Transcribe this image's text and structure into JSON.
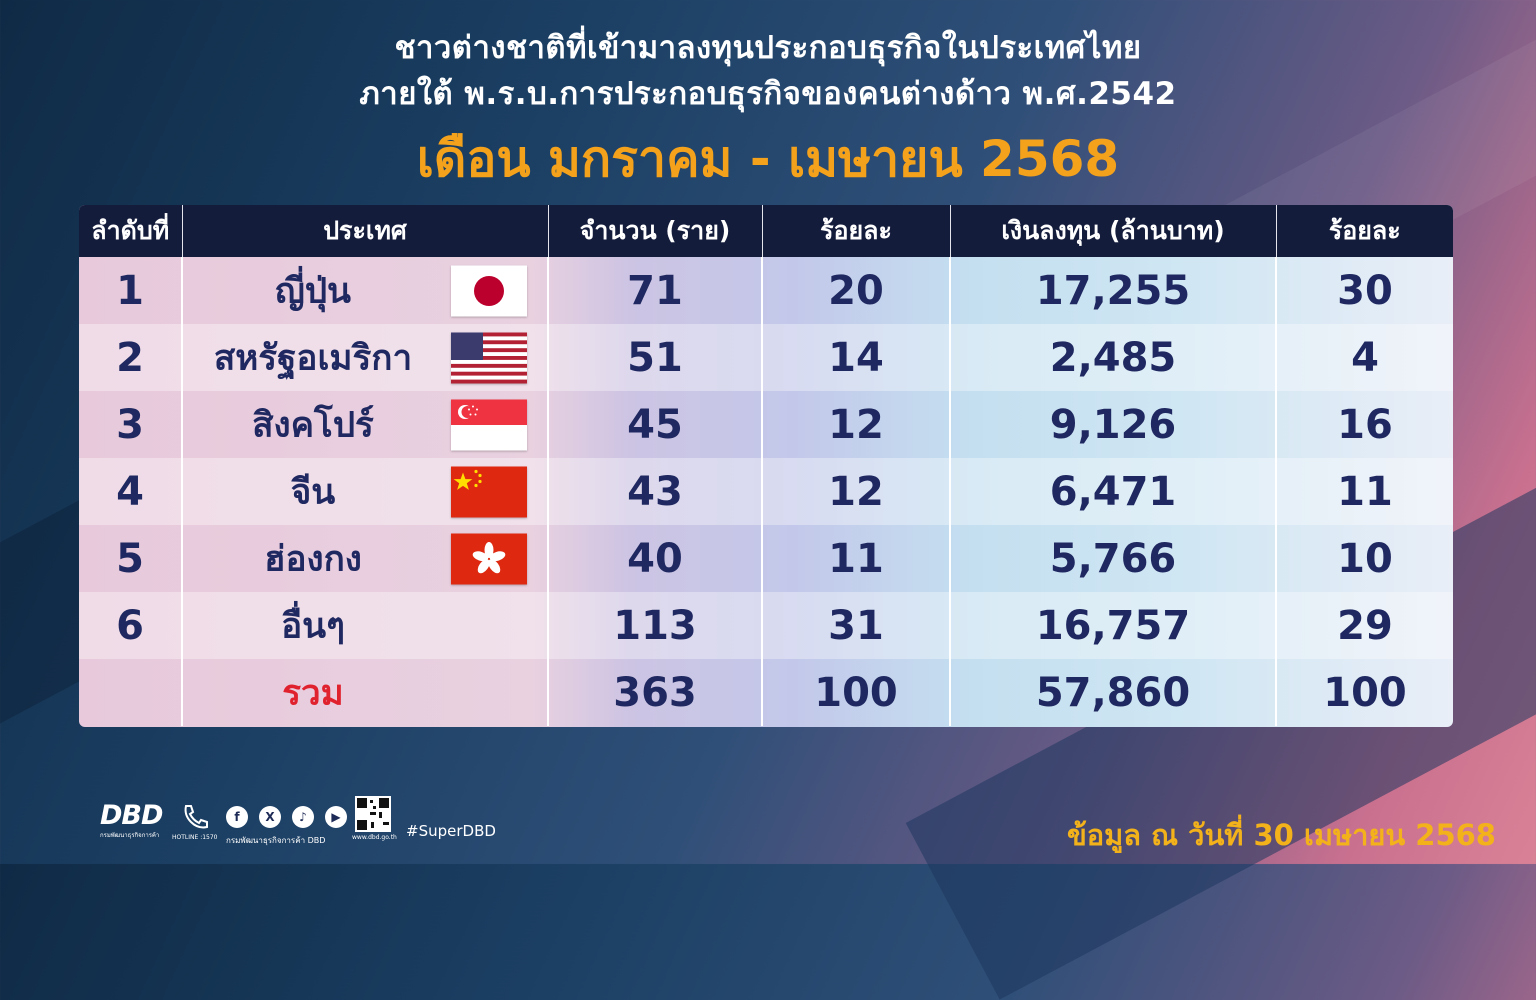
{
  "header": {
    "title_line1": "ชาวต่างชาติที่เข้ามาลงทุนประกอบธุรกิจในประเทศไทย",
    "title_line2": "ภายใต้ พ.ร.บ.การประกอบธุรกิจของคนต่างด้าว พ.ศ.2542",
    "period": "เดือน มกราคม - เมษายน 2568"
  },
  "table": {
    "columns": [
      "ลำดับที่",
      "ประเทศ",
      "จำนวน (ราย)",
      "ร้อยละ",
      "เงินลงทุน (ล้านบาท)",
      "ร้อยละ"
    ],
    "rows": [
      {
        "rank": "1",
        "country": "ญี่ปุ่น",
        "flag": "japan-flag",
        "count": "71",
        "count_pct": "20",
        "investment": "17,255",
        "investment_pct": "30"
      },
      {
        "rank": "2",
        "country": "สหรัฐอเมริกา",
        "flag": "usa-flag",
        "count": "51",
        "count_pct": "14",
        "investment": "2,485",
        "investment_pct": "4"
      },
      {
        "rank": "3",
        "country": "สิงคโปร์",
        "flag": "singapore-flag",
        "count": "45",
        "count_pct": "12",
        "investment": "9,126",
        "investment_pct": "16"
      },
      {
        "rank": "4",
        "country": "จีน",
        "flag": "china-flag",
        "count": "43",
        "count_pct": "12",
        "investment": "6,471",
        "investment_pct": "11"
      },
      {
        "rank": "5",
        "country": "ฮ่องกง",
        "flag": "hongkong-flag",
        "count": "40",
        "count_pct": "11",
        "investment": "5,766",
        "investment_pct": "10"
      },
      {
        "rank": "6",
        "country": "อื่นๆ",
        "flag": "",
        "count": "113",
        "count_pct": "31",
        "investment": "16,757",
        "investment_pct": "29"
      }
    ],
    "total": {
      "label": "รวม",
      "count": "363",
      "count_pct": "100",
      "investment": "57,860",
      "investment_pct": "100"
    }
  },
  "footer": {
    "logo_text": "DBD",
    "logo_sub": "กรมพัฒนาธุรกิจการค้า",
    "hotline": "HOTLINE :1570",
    "social_text": "กรมพัฒนาธุรกิจการค้า DBD",
    "website": "www.dbd.go.th",
    "hashtag": "#SuperDBD",
    "data_note": "ข้อมูล ณ วันที่ 30 เมษายน 2568"
  },
  "colors": {
    "accent": "#f4a21c",
    "header_bg": "#141c3c",
    "text": "#1f2860",
    "total_label": "#e0222e"
  }
}
